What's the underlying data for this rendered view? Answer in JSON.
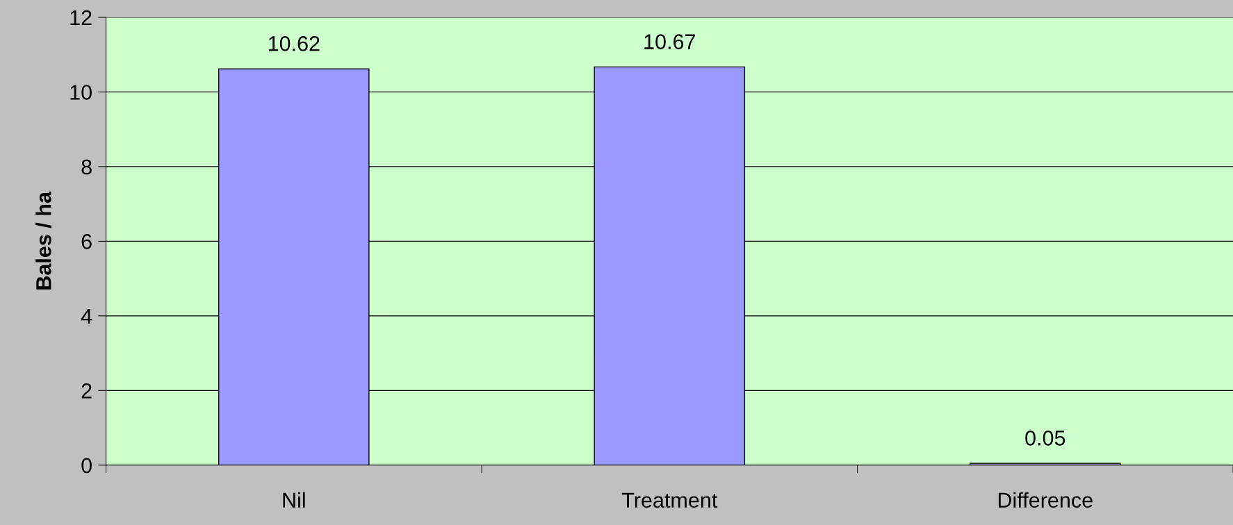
{
  "chart_data": {
    "type": "bar",
    "ylabel": "Bales / ha",
    "categories": [
      "Nil",
      "Treatment",
      "Difference"
    ],
    "values": [
      10.62,
      10.67,
      0.05
    ],
    "color": "#9999ff",
    "ylim": [
      0,
      12
    ],
    "yticks": [
      0,
      2,
      4,
      6,
      8,
      10,
      12
    ],
    "grid": "y",
    "data_labels": true
  }
}
